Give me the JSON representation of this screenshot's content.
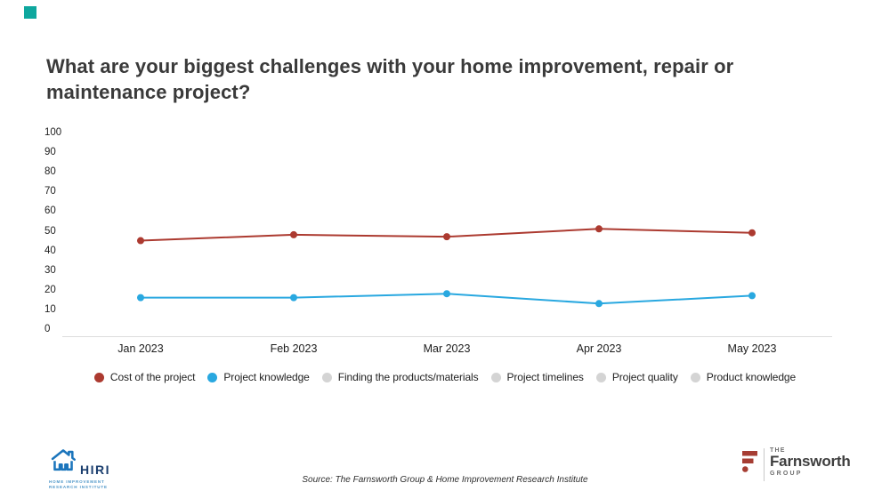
{
  "accent_color": "#0EA79E",
  "title": {
    "text": "What are your biggest challenges with your home improvement, repair or maintenance project?"
  },
  "chart_data": {
    "type": "line",
    "x": [
      "Jan 2023",
      "Feb 2023",
      "Mar 2023",
      "Apr 2023",
      "May 2023"
    ],
    "series": [
      {
        "name": "Cost of the project",
        "color": "#AC3A30",
        "values": [
          45,
          48,
          47,
          51,
          49
        ]
      },
      {
        "name": "Project knowledge",
        "color": "#29A8E0",
        "values": [
          16,
          16,
          18,
          13,
          17
        ]
      },
      {
        "name": "Finding the products/materials",
        "color": "#D4D4D4",
        "values": []
      },
      {
        "name": "Project timelines",
        "color": "#D4D4D4",
        "values": []
      },
      {
        "name": "Project quality",
        "color": "#D4D4D4",
        "values": []
      },
      {
        "name": "Product knowledge",
        "color": "#D4D4D4",
        "values": []
      }
    ],
    "ylim": [
      0,
      100
    ],
    "yticks": [
      100,
      90,
      80,
      70,
      60,
      50,
      40,
      30,
      20,
      10,
      0
    ],
    "grid": false,
    "legend_position": "bottom"
  },
  "footer": {
    "hiri_logo": {
      "name": "HIRI",
      "sub1": "HOME IMPROVEMENT",
      "sub2": "RESEARCH INSTITUTE"
    },
    "source": "Source: The Farnsworth Group & Home Improvement Research Institute",
    "farnsworth_logo": {
      "the": "THE",
      "name": "Farnsworth",
      "group": "GROUP"
    }
  }
}
